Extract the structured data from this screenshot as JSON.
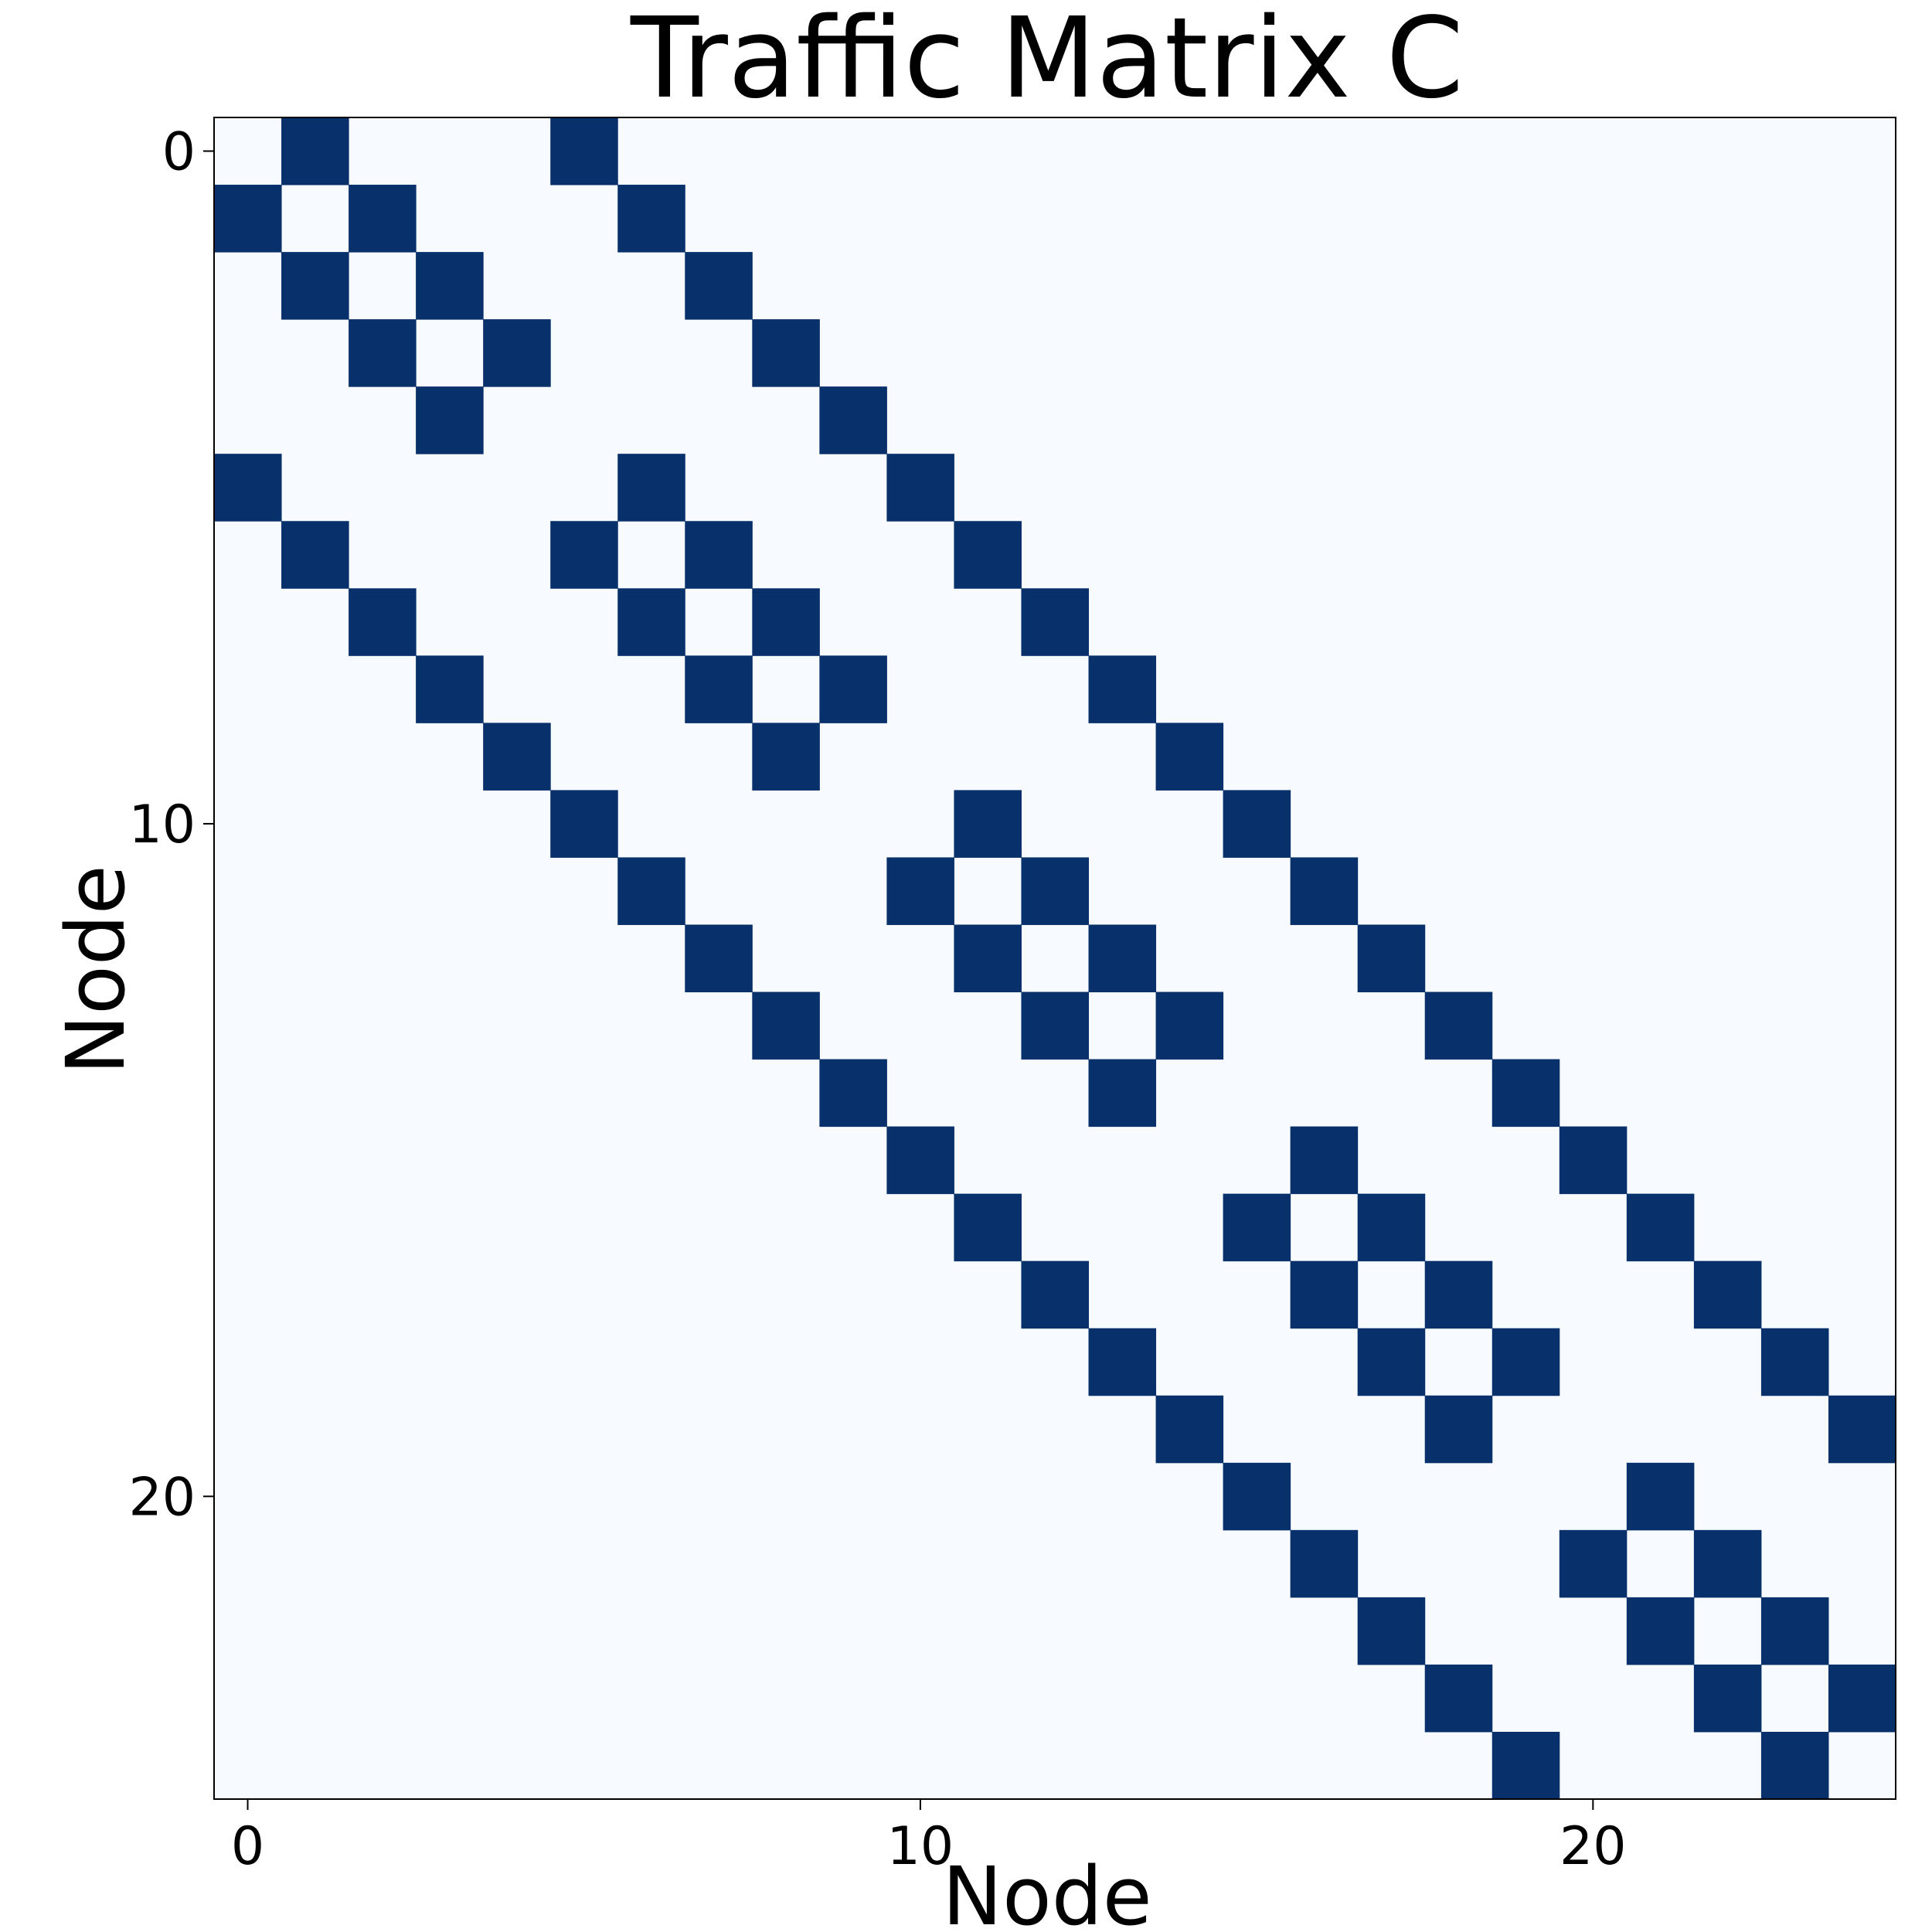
{
  "chart_data": {
    "type": "heatmap",
    "title": "Traffic Matrix C",
    "xlabel": "Node",
    "ylabel": "Node",
    "n": 25,
    "xticks": [
      0,
      10,
      20
    ],
    "yticks": [
      0,
      10,
      20
    ],
    "colors": {
      "background": "#f7fbff",
      "high": "#08306b"
    },
    "grid": false,
    "edges": [
      [
        0,
        1
      ],
      [
        0,
        5
      ],
      [
        1,
        2
      ],
      [
        1,
        6
      ],
      [
        2,
        3
      ],
      [
        2,
        7
      ],
      [
        3,
        4
      ],
      [
        3,
        8
      ],
      [
        4,
        9
      ],
      [
        5,
        6
      ],
      [
        5,
        10
      ],
      [
        6,
        7
      ],
      [
        6,
        11
      ],
      [
        7,
        8
      ],
      [
        7,
        12
      ],
      [
        8,
        9
      ],
      [
        8,
        13
      ],
      [
        9,
        14
      ],
      [
        10,
        11
      ],
      [
        10,
        15
      ],
      [
        11,
        12
      ],
      [
        11,
        16
      ],
      [
        12,
        13
      ],
      [
        12,
        17
      ],
      [
        13,
        14
      ],
      [
        13,
        18
      ],
      [
        14,
        19
      ],
      [
        15,
        16
      ],
      [
        15,
        20
      ],
      [
        16,
        17
      ],
      [
        16,
        21
      ],
      [
        17,
        18
      ],
      [
        17,
        22
      ],
      [
        18,
        19
      ],
      [
        18,
        23
      ],
      [
        19,
        24
      ],
      [
        20,
        21
      ],
      [
        21,
        22
      ],
      [
        22,
        23
      ],
      [
        23,
        24
      ]
    ]
  }
}
